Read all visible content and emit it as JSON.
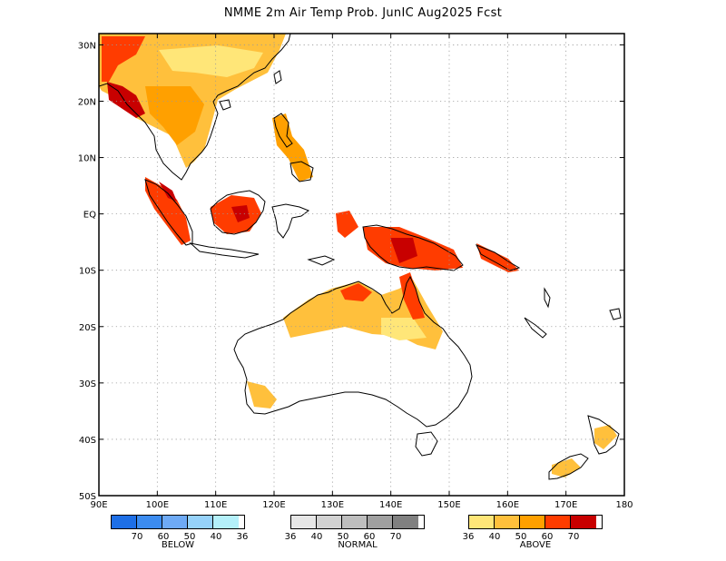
{
  "title": "NMME 2m Air Temp Prob. JunIC  Aug2025 Fcst",
  "map": {
    "lon_range": [
      90,
      180
    ],
    "lat_range": [
      -50,
      32
    ],
    "lat_labels": [
      "30N",
      "20N",
      "10N",
      "EQ",
      "10S",
      "20S",
      "30S",
      "40S",
      "50S"
    ],
    "lon_labels": [
      "90E",
      "100E",
      "110E",
      "120E",
      "130E",
      "140E",
      "150E",
      "160E",
      "170E",
      "180"
    ],
    "gridlines": "dotted"
  },
  "legend": {
    "below": {
      "name": "BELOW",
      "colors": [
        "#1e6fe6",
        "#3c8cf0",
        "#6eaaf5",
        "#96d2fa",
        "#b4f0fa"
      ],
      "ticks": [
        "70",
        "60",
        "50",
        "40",
        "36"
      ]
    },
    "normal": {
      "name": "NORMAL",
      "colors": [
        "#e6e6e6",
        "#d2d2d2",
        "#bebebe",
        "#a0a0a0",
        "#808080"
      ],
      "ticks": [
        "36",
        "40",
        "50",
        "60",
        "70"
      ]
    },
    "above": {
      "name": "ABOVE",
      "colors": [
        "#ffe678",
        "#ffc03c",
        "#ffa000",
        "#ff3c00",
        "#c80000"
      ],
      "ticks": [
        "36",
        "40",
        "50",
        "60",
        "70"
      ]
    }
  }
}
